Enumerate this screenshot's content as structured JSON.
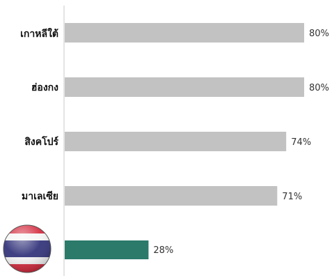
{
  "chart_data": {
    "type": "bar",
    "orientation": "horizontal",
    "categories": [
      "เกาหลีใต้",
      "ฮ่องกง",
      "สิงคโปร์",
      "มาเลเซีย",
      "Thailand"
    ],
    "values": [
      80,
      80,
      74,
      71,
      28
    ],
    "value_labels": [
      "80%",
      "80%",
      "74%",
      "71%",
      "28%"
    ],
    "highlight_index": 4,
    "last_category_shown_as": "thailand-flag-icon",
    "xlim": [
      0,
      100
    ],
    "colors": {
      "bar": "#c2c2c2",
      "highlight": "#2b7a6a",
      "axis": "#c8c8c8",
      "value_text": "#333333",
      "highlight_text": "#2b7a6a"
    }
  }
}
